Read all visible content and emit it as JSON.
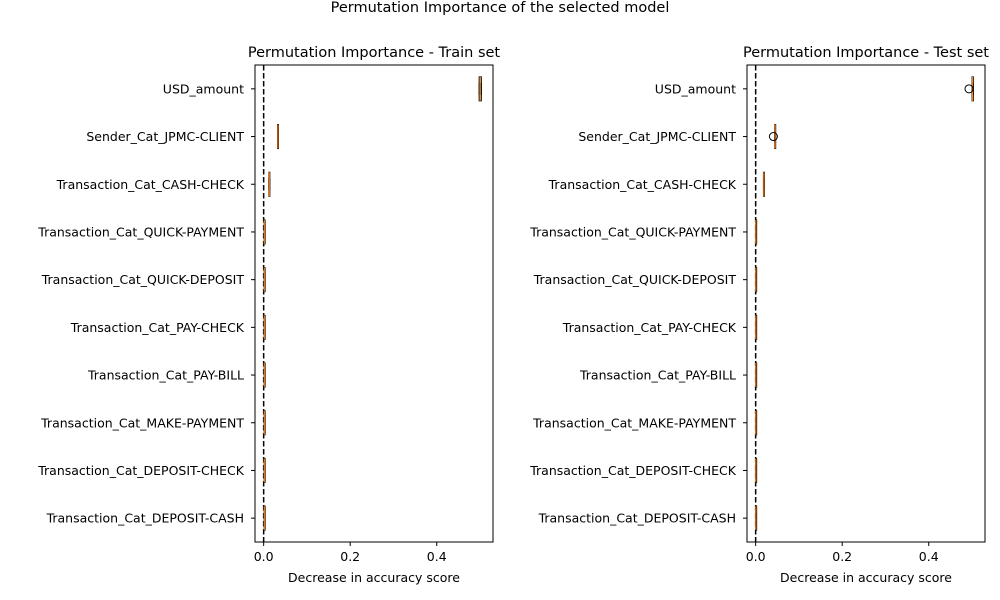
{
  "figure_title": "Permutation Importance of the selected model",
  "chart_data": [
    {
      "type": "boxplot",
      "orientation": "horizontal",
      "title": "Permutation Importance - Train set",
      "xlabel": "Decrease in accuracy score",
      "ylabel": "",
      "xlim": [
        -0.02,
        0.53
      ],
      "xticks": [
        0.0,
        0.2,
        0.4
      ],
      "xtick_labels": [
        "0.0",
        "0.2",
        "0.4"
      ],
      "reference_line": {
        "x": 0,
        "style": "dashed",
        "color": "#000000"
      },
      "categories": [
        "USD_amount",
        "Sender_Cat_JPMC-CLIENT",
        "Transaction_Cat_CASH-CHECK",
        "Transaction_Cat_QUICK-PAYMENT",
        "Transaction_Cat_QUICK-DEPOSIT",
        "Transaction_Cat_PAY-CHECK",
        "Transaction_Cat_PAY-BILL",
        "Transaction_Cat_MAKE-PAYMENT",
        "Transaction_Cat_DEPOSIT-CHECK",
        "Transaction_Cat_DEPOSIT-CASH"
      ],
      "boxes": [
        {
          "min": 0.498,
          "q1": 0.498,
          "median": 0.5,
          "q3": 0.503,
          "max": 0.503,
          "fliers": []
        },
        {
          "min": 0.032,
          "q1": 0.032,
          "median": 0.033,
          "q3": 0.034,
          "max": 0.034,
          "fliers": []
        },
        {
          "min": 0.012,
          "q1": 0.012,
          "median": 0.013,
          "q3": 0.014,
          "max": 0.014,
          "fliers": []
        },
        {
          "min": 0.001,
          "q1": 0.001,
          "median": 0.0015,
          "q3": 0.002,
          "max": 0.002,
          "fliers": []
        },
        {
          "min": 0.001,
          "q1": 0.001,
          "median": 0.0015,
          "q3": 0.002,
          "max": 0.002,
          "fliers": []
        },
        {
          "min": 0.001,
          "q1": 0.001,
          "median": 0.0015,
          "q3": 0.002,
          "max": 0.002,
          "fliers": []
        },
        {
          "min": 0.001,
          "q1": 0.001,
          "median": 0.0015,
          "q3": 0.002,
          "max": 0.002,
          "fliers": []
        },
        {
          "min": 0.001,
          "q1": 0.001,
          "median": 0.0015,
          "q3": 0.002,
          "max": 0.002,
          "fliers": []
        },
        {
          "min": 0.001,
          "q1": 0.001,
          "median": 0.0015,
          "q3": 0.002,
          "max": 0.002,
          "fliers": []
        },
        {
          "min": 0.001,
          "q1": 0.001,
          "median": 0.0015,
          "q3": 0.002,
          "max": 0.002,
          "fliers": []
        }
      ],
      "box_color": "#000000",
      "median_color": "#ff7f0e",
      "grid": false
    },
    {
      "type": "boxplot",
      "orientation": "horizontal",
      "title": "Permutation Importance - Test set",
      "xlabel": "Decrease in accuracy score",
      "ylabel": "",
      "xlim": [
        -0.02,
        0.53
      ],
      "xticks": [
        0.0,
        0.2,
        0.4
      ],
      "xtick_labels": [
        "0.0",
        "0.2",
        "0.4"
      ],
      "reference_line": {
        "x": 0,
        "style": "dashed",
        "color": "#000000"
      },
      "categories": [
        "USD_amount",
        "Sender_Cat_JPMC-CLIENT",
        "Transaction_Cat_CASH-CHECK",
        "Transaction_Cat_QUICK-PAYMENT",
        "Transaction_Cat_QUICK-DEPOSIT",
        "Transaction_Cat_PAY-CHECK",
        "Transaction_Cat_PAY-BILL",
        "Transaction_Cat_MAKE-PAYMENT",
        "Transaction_Cat_DEPOSIT-CHECK",
        "Transaction_Cat_DEPOSIT-CASH"
      ],
      "boxes": [
        {
          "min": 0.5,
          "q1": 0.5,
          "median": 0.501,
          "q3": 0.503,
          "max": 0.503,
          "fliers": [
            0.493
          ]
        },
        {
          "min": 0.044,
          "q1": 0.044,
          "median": 0.045,
          "q3": 0.046,
          "max": 0.046,
          "fliers": [
            0.041
          ]
        },
        {
          "min": 0.018,
          "q1": 0.018,
          "median": 0.019,
          "q3": 0.02,
          "max": 0.02,
          "fliers": []
        },
        {
          "min": 0.0,
          "q1": 0.0,
          "median": 0.0005,
          "q3": 0.001,
          "max": 0.001,
          "fliers": []
        },
        {
          "min": 0.0,
          "q1": 0.0,
          "median": 0.0005,
          "q3": 0.001,
          "max": 0.001,
          "fliers": []
        },
        {
          "min": 0.0,
          "q1": 0.0,
          "median": 0.0005,
          "q3": 0.001,
          "max": 0.001,
          "fliers": []
        },
        {
          "min": 0.0,
          "q1": 0.0,
          "median": 0.0005,
          "q3": 0.001,
          "max": 0.001,
          "fliers": []
        },
        {
          "min": 0.0,
          "q1": 0.0,
          "median": 0.0005,
          "q3": 0.001,
          "max": 0.001,
          "fliers": []
        },
        {
          "min": 0.0,
          "q1": 0.0,
          "median": 0.0005,
          "q3": 0.001,
          "max": 0.001,
          "fliers": []
        },
        {
          "min": 0.0,
          "q1": 0.0,
          "median": 0.0005,
          "q3": 0.001,
          "max": 0.001,
          "fliers": []
        }
      ],
      "box_color": "#000000",
      "median_color": "#ff7f0e",
      "grid": false
    }
  ]
}
